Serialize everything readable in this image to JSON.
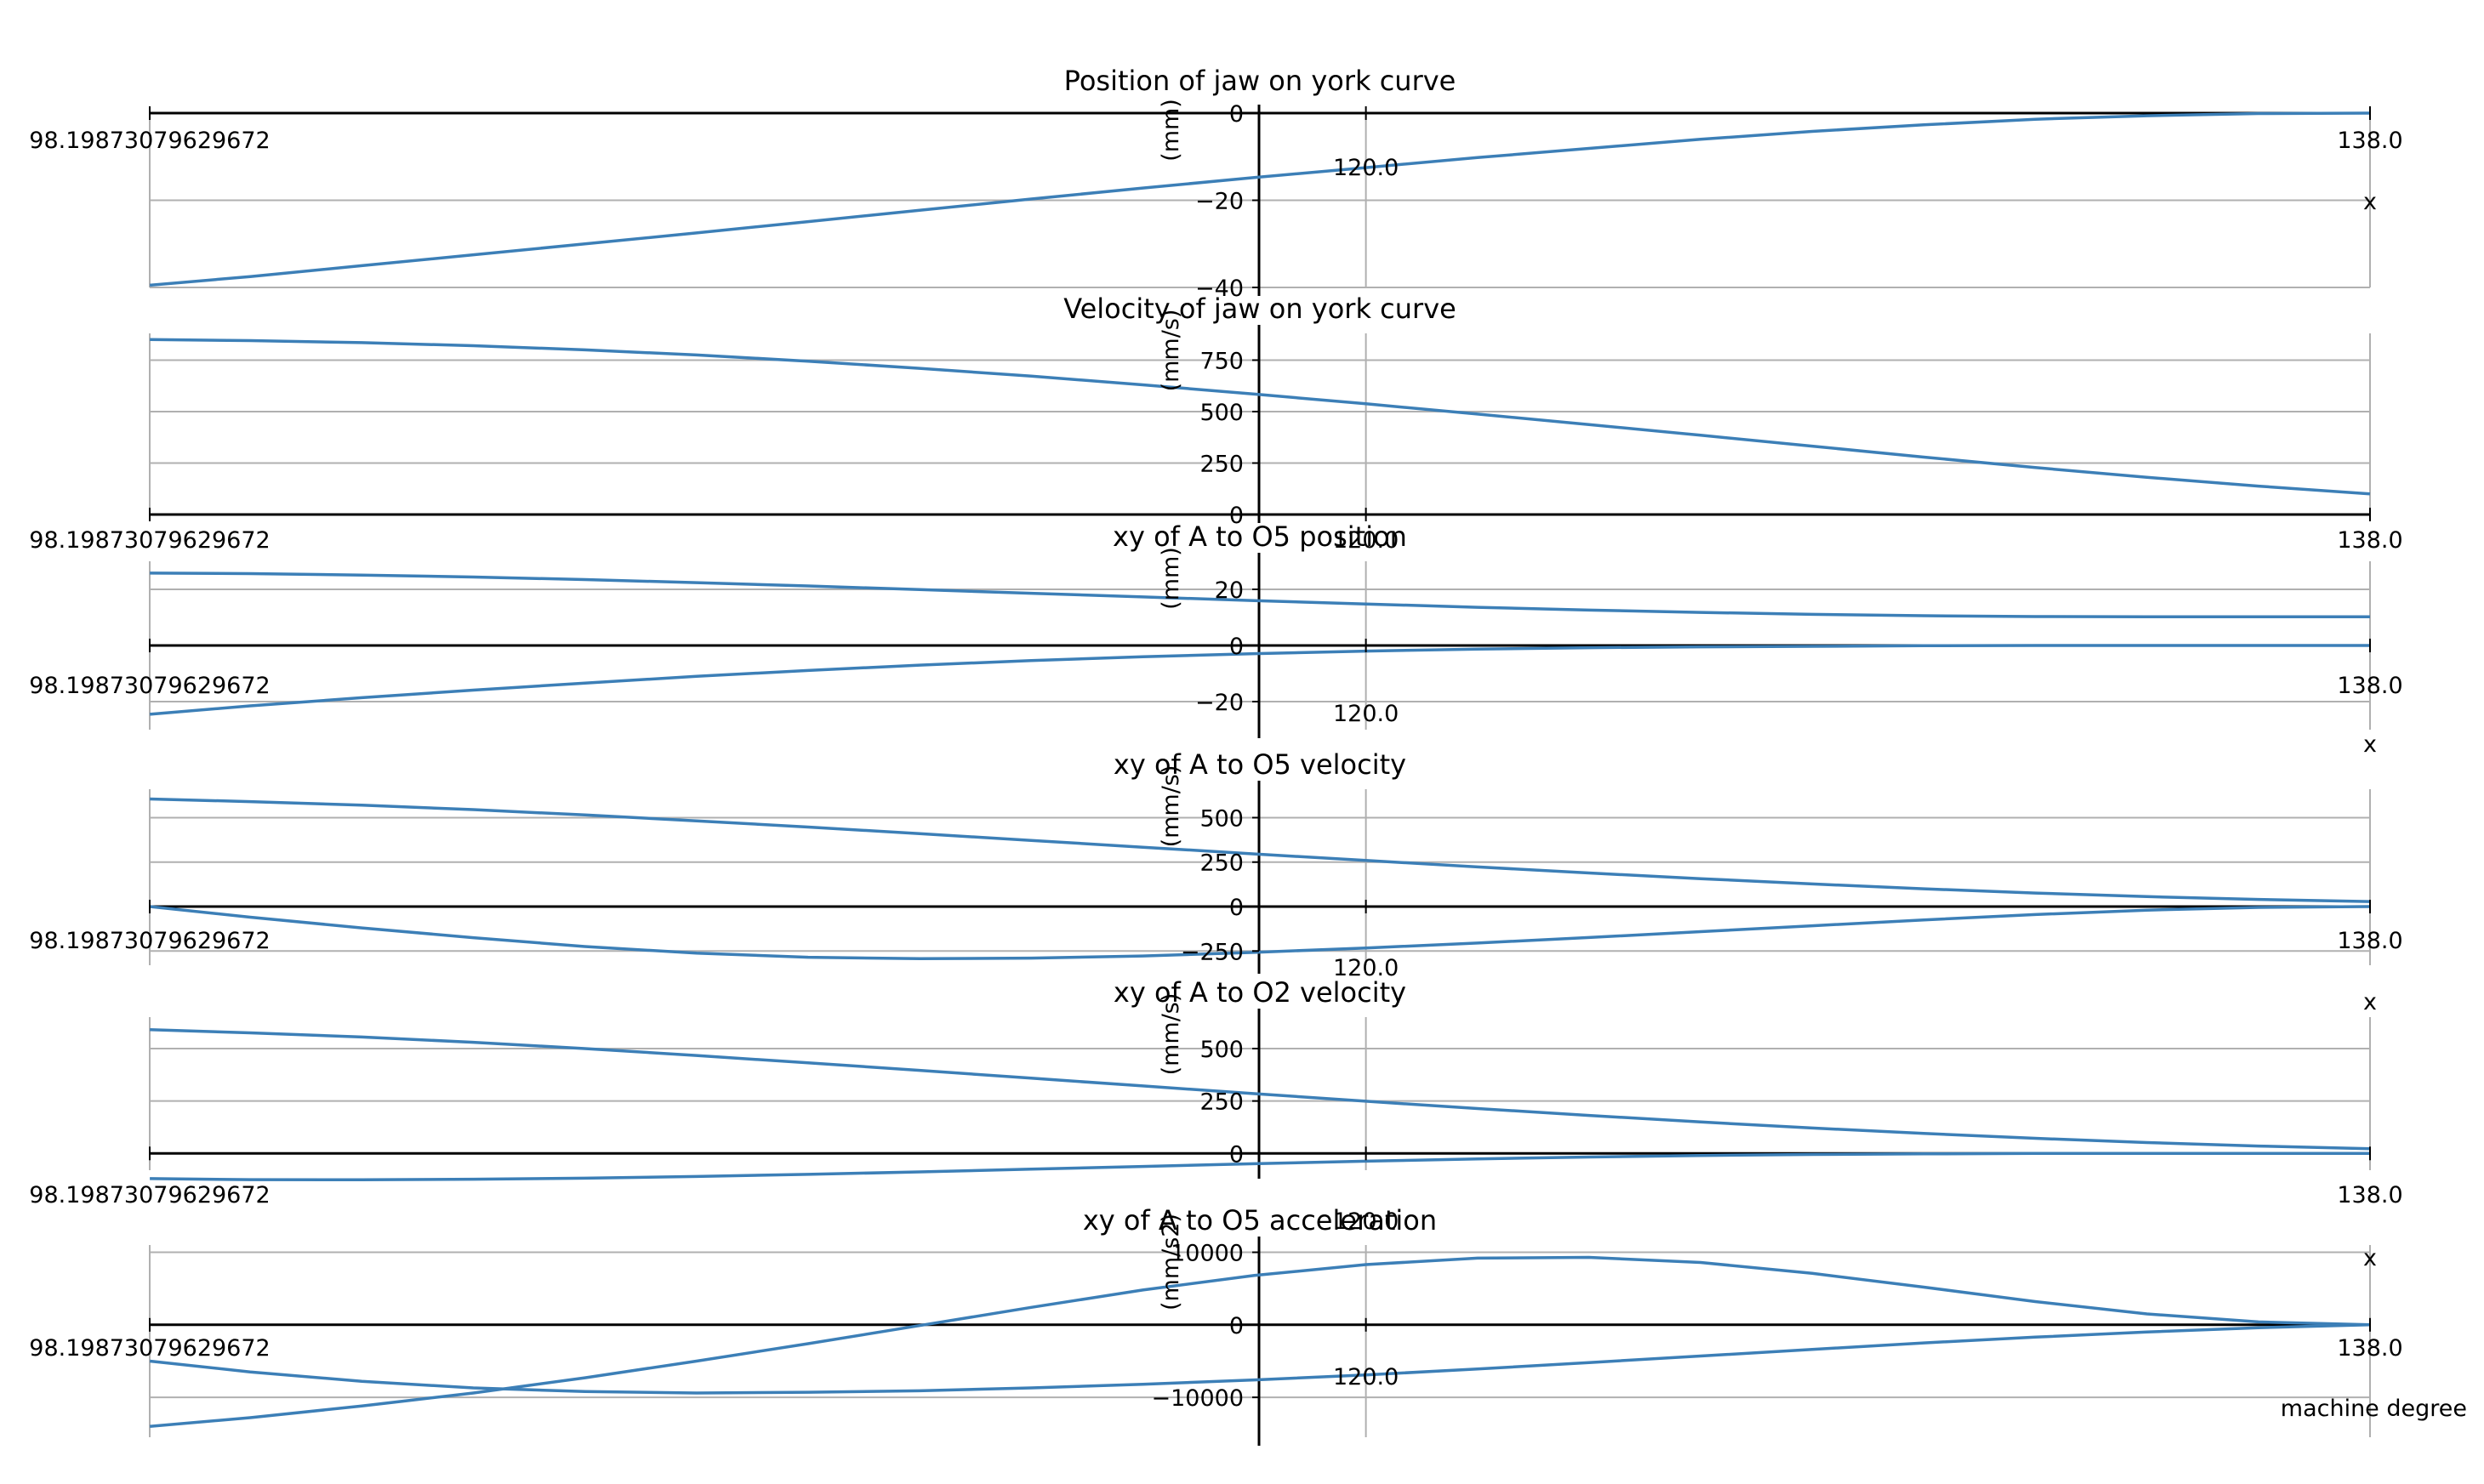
{
  "colors": {
    "line": "#3c7fb7",
    "grid": "#b0b0b0",
    "axis": "#000000",
    "background": "#ffffff"
  },
  "figure": {
    "xlabel": "machine degree"
  },
  "chart_data": [
    {
      "type": "line",
      "title": "Position of jaw on york curve",
      "ylabel": "(mm)",
      "xlim": [
        98.19873079629672,
        138.0
      ],
      "x_ticks": [
        "98.19873079629672",
        "120.0",
        "138.0"
      ],
      "ylim": [
        -40,
        0
      ],
      "y_ticks": [
        "0",
        "−20",
        "−40"
      ],
      "x_axis_label": "x",
      "grid": true,
      "series": [
        {
          "x": [
            98.2,
            100,
            102,
            104,
            106,
            108,
            110,
            112,
            114,
            116,
            118,
            120,
            122,
            124,
            126,
            128,
            130,
            132,
            134,
            136,
            138
          ],
          "values": [
            -39.5,
            -37.5,
            -35.0,
            -32.5,
            -30.0,
            -27.5,
            -24.9,
            -22.3,
            -19.7,
            -17.2,
            -14.8,
            -12.5,
            -10.2,
            -8.1,
            -6.0,
            -4.2,
            -2.7,
            -1.4,
            -0.6,
            -0.1,
            0.0
          ]
        }
      ]
    },
    {
      "type": "line",
      "title": "Velocity of jaw on york curve",
      "ylabel": "(mm/s)",
      "xlim": [
        98.19873079629672,
        138.0
      ],
      "x_ticks": [
        "98.19873079629672",
        "120.0",
        "138.0"
      ],
      "ylim": [
        0,
        880
      ],
      "y_ticks": [
        "750",
        "500",
        "250",
        "0"
      ],
      "grid": true,
      "series": [
        {
          "x": [
            98.2,
            100,
            102,
            104,
            106,
            108,
            110,
            112,
            114,
            116,
            118,
            120,
            122,
            124,
            126,
            128,
            130,
            132,
            134,
            136,
            138
          ],
          "values": [
            850,
            845,
            835,
            820,
            800,
            775,
            745,
            710,
            672,
            630,
            585,
            538,
            488,
            437,
            385,
            332,
            279,
            228,
            181,
            138,
            100
          ]
        }
      ]
    },
    {
      "type": "line",
      "title": "xy of A to O5 position",
      "ylabel": "(mm)",
      "xlim": [
        98.19873079629672,
        138.0
      ],
      "x_ticks": [
        "98.19873079629672",
        "120.0",
        "138.0"
      ],
      "ylim": [
        -30,
        30
      ],
      "y_ticks": [
        "20",
        "0",
        "−20"
      ],
      "x_axis_label": "x",
      "grid": true,
      "series": [
        {
          "x": [
            98.2,
            100,
            102,
            104,
            106,
            108,
            110,
            112,
            114,
            116,
            118,
            120,
            122,
            124,
            126,
            128,
            130,
            132,
            134,
            136,
            138
          ],
          "values": [
            25.8,
            25.6,
            25.1,
            24.4,
            23.5,
            22.4,
            21.2,
            19.9,
            18.6,
            17.3,
            16.0,
            14.8,
            13.6,
            12.6,
            11.8,
            11.1,
            10.6,
            10.3,
            10.2,
            10.2,
            10.2
          ]
        },
        {
          "x": [
            98.2,
            100,
            102,
            104,
            106,
            108,
            110,
            112,
            114,
            116,
            118,
            120,
            122,
            124,
            126,
            128,
            130,
            132,
            134,
            136,
            138
          ],
          "values": [
            -24.5,
            -21.5,
            -18.6,
            -15.9,
            -13.4,
            -11.0,
            -8.9,
            -7.0,
            -5.4,
            -4.0,
            -2.9,
            -2.0,
            -1.3,
            -0.8,
            -0.5,
            -0.3,
            -0.1,
            0.0,
            0.0,
            0.0,
            0.0
          ]
        }
      ]
    },
    {
      "type": "line",
      "title": "xy of A to O5 velocity",
      "ylabel": "(mm/s)",
      "xlim": [
        98.19873079629672,
        138.0
      ],
      "x_ticks": [
        "98.19873079629672",
        "120.0",
        "138.0"
      ],
      "ylim": [
        -330,
        660
      ],
      "y_ticks": [
        "500",
        "250",
        "0",
        "−250"
      ],
      "x_axis_label": "x",
      "grid": true,
      "series": [
        {
          "x": [
            98.2,
            100,
            102,
            104,
            106,
            108,
            110,
            112,
            114,
            116,
            118,
            120,
            122,
            124,
            126,
            128,
            130,
            132,
            134,
            136,
            138
          ],
          "values": [
            605,
            590,
            570,
            545,
            515,
            482,
            447,
            410,
            372,
            334,
            296,
            259,
            223,
            189,
            157,
            127,
            100,
            76,
            56,
            40,
            28
          ]
        },
        {
          "x": [
            98.2,
            100,
            102,
            104,
            106,
            108,
            110,
            112,
            114,
            116,
            118,
            120,
            122,
            124,
            126,
            128,
            130,
            132,
            134,
            136,
            138
          ],
          "values": [
            0,
            -60,
            -120,
            -175,
            -225,
            -262,
            -285,
            -293,
            -290,
            -278,
            -258,
            -233,
            -205,
            -174,
            -141,
            -108,
            -75,
            -45,
            -20,
            -5,
            0
          ]
        }
      ]
    },
    {
      "type": "line",
      "title": "xy of A to O2 velocity",
      "ylabel": "(mm/s)",
      "xlim": [
        98.19873079629672,
        138.0
      ],
      "x_ticks": [
        "98.19873079629672",
        "120.0",
        "138.0"
      ],
      "ylim": [
        -80,
        650
      ],
      "y_ticks": [
        "500",
        "250",
        "0"
      ],
      "grid": true,
      "series": [
        {
          "x": [
            98.2,
            100,
            102,
            104,
            106,
            108,
            110,
            112,
            114,
            116,
            118,
            120,
            122,
            124,
            126,
            128,
            130,
            132,
            134,
            136,
            138
          ],
          "values": [
            590,
            575,
            555,
            530,
            500,
            467,
            432,
            396,
            359,
            322,
            285,
            249,
            214,
            181,
            150,
            121,
            95,
            72,
            52,
            35,
            22
          ]
        },
        {
          "x": [
            98.2,
            100,
            102,
            104,
            106,
            108,
            110,
            112,
            114,
            116,
            118,
            120,
            122,
            124,
            126,
            128,
            130,
            132,
            134,
            136,
            138
          ],
          "values": [
            -120,
            -125,
            -126,
            -123,
            -118,
            -110,
            -100,
            -88,
            -75,
            -62,
            -49,
            -37,
            -26,
            -17,
            -10,
            -5,
            -2,
            0,
            0,
            0,
            0
          ]
        }
      ]
    },
    {
      "type": "line",
      "title": "xy of A to O5 acceleration",
      "ylabel": "(mm/s2)",
      "xlim": [
        98.19873079629672,
        138.0
      ],
      "x_ticks": [
        "98.19873079629672",
        "120.0",
        "138.0"
      ],
      "ylim": [
        -15500,
        11000
      ],
      "y_ticks": [
        "10000",
        "0",
        "−10000"
      ],
      "x_axis_label": "x",
      "grid": true,
      "series": [
        {
          "x": [
            98.2,
            100,
            102,
            104,
            106,
            108,
            110,
            112,
            114,
            116,
            118,
            120,
            122,
            124,
            126,
            128,
            130,
            132,
            134,
            136,
            138
          ],
          "values": [
            -14000,
            -12800,
            -11200,
            -9400,
            -7300,
            -5000,
            -2600,
            -100,
            2400,
            4800,
            6800,
            8300,
            9200,
            9300,
            8600,
            7100,
            5200,
            3200,
            1500,
            400,
            0
          ]
        },
        {
          "x": [
            98.2,
            100,
            102,
            104,
            106,
            108,
            110,
            112,
            114,
            116,
            118,
            120,
            122,
            124,
            126,
            128,
            130,
            132,
            134,
            136,
            138
          ],
          "values": [
            -5000,
            -6500,
            -7800,
            -8700,
            -9200,
            -9400,
            -9300,
            -9100,
            -8700,
            -8200,
            -7600,
            -6900,
            -6100,
            -5200,
            -4300,
            -3400,
            -2500,
            -1700,
            -1000,
            -400,
            0
          ]
        }
      ]
    }
  ]
}
